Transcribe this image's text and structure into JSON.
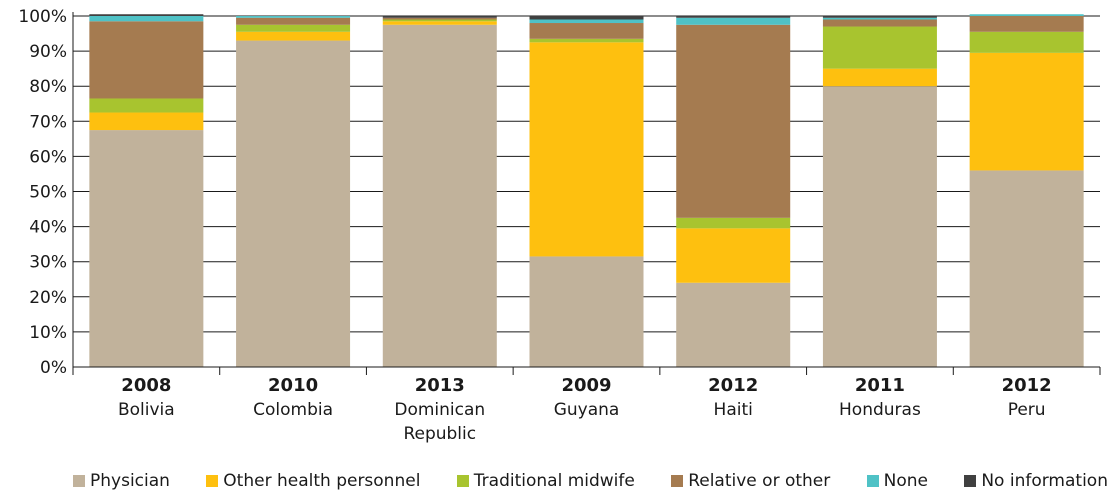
{
  "chart_data": {
    "type": "bar",
    "stacked": true,
    "normalized": true,
    "categories": [
      {
        "year": "2008",
        "country": "Bolivia"
      },
      {
        "year": "2010",
        "country": "Colombia"
      },
      {
        "year": "2013",
        "country": "Dominican Republic"
      },
      {
        "year": "2009",
        "country": "Guyana"
      },
      {
        "year": "2012",
        "country": "Haiti"
      },
      {
        "year": "2011",
        "country": "Honduras"
      },
      {
        "year": "2012",
        "country": "Peru"
      }
    ],
    "series": [
      {
        "name": "Physician",
        "color": "#c1b29b",
        "values": [
          67.5,
          93,
          97.5,
          31.5,
          24,
          80,
          56
        ]
      },
      {
        "name": "Other health personnel",
        "color": "#fec00f",
        "values": [
          5,
          2.5,
          1,
          61,
          15.5,
          5,
          33.5
        ]
      },
      {
        "name": "Traditional midwife",
        "color": "#a8c42f",
        "values": [
          4,
          2,
          0.5,
          1,
          3,
          12,
          6
        ]
      },
      {
        "name": "Relative or other",
        "color": "#a57b50",
        "values": [
          22,
          2,
          0.5,
          4.5,
          55,
          2,
          4.5
        ]
      },
      {
        "name": "None",
        "color": "#4fc2c6",
        "values": [
          1.5,
          0.5,
          0,
          1,
          2,
          0.5,
          0.5
        ]
      },
      {
        "name": "No information",
        "color": "#404040",
        "values": [
          0.5,
          0,
          0.5,
          1,
          0.5,
          0.5,
          0
        ]
      }
    ],
    "y_ticks": [
      "0%",
      "10%",
      "20%",
      "30%",
      "40%",
      "50%",
      "60%",
      "70%",
      "80%",
      "90%",
      "100%"
    ],
    "ylim": [
      0,
      100
    ],
    "grid": true,
    "legend_position": "bottom",
    "title": "",
    "xlabel": "",
    "ylabel": ""
  }
}
